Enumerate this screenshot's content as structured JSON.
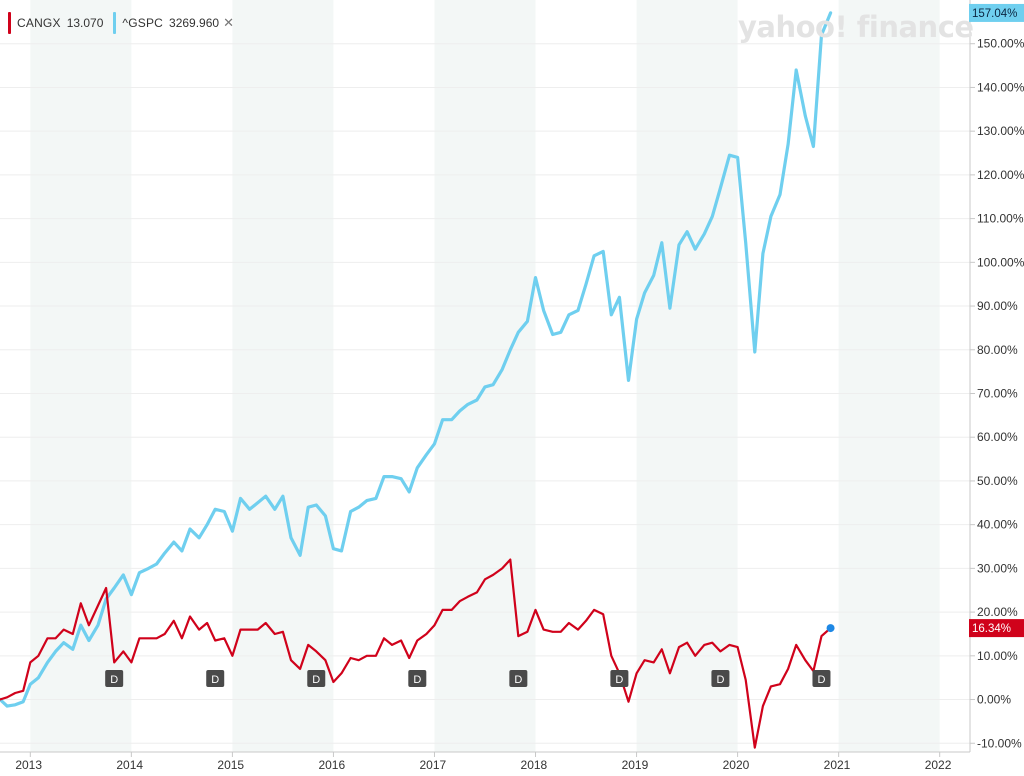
{
  "legend": {
    "series": [
      {
        "symbol": "CANGX",
        "value": "13.070",
        "color": "#d0021b"
      },
      {
        "symbol": "^GSPC",
        "value": "3269.960",
        "color": "#6fcfef"
      }
    ],
    "close_icon": "close-icon"
  },
  "watermark": "yahoo! finance",
  "end_labels": {
    "gspc": "157.04%",
    "cangx": "16.34%"
  },
  "dividend_marker": "D",
  "chart_data": {
    "type": "line",
    "title": "",
    "xlabel": "",
    "ylabel": "",
    "x_axis_labels": [
      "2013",
      "2014",
      "2015",
      "2016",
      "2017",
      "2018",
      "2019",
      "2020",
      "2021",
      "2022"
    ],
    "y_axis_labels": [
      "-10.00%",
      "0.00%",
      "10.00%",
      "20.00%",
      "30.00%",
      "40.00%",
      "50.00%",
      "60.00%",
      "70.00%",
      "80.00%",
      "90.00%",
      "100.00%",
      "110.00%",
      "120.00%",
      "130.00%",
      "140.00%",
      "150.00%"
    ],
    "y_range": [
      -12,
      160
    ],
    "x_range": [
      2012.7,
      2022.3
    ],
    "grid": true,
    "shaded_alternate_years": true,
    "legend_position": "top-left",
    "dividend_dates": [
      2013.83,
      2014.83,
      2015.83,
      2016.83,
      2017.83,
      2018.83,
      2019.83,
      2020.83
    ],
    "series": [
      {
        "name": "^GSPC",
        "color": "#6fcfef",
        "points": [
          [
            2012.7,
            0.0
          ],
          [
            2012.77,
            -1.5
          ],
          [
            2012.85,
            -1.2
          ],
          [
            2012.93,
            -0.5
          ],
          [
            2013.0,
            3.5
          ],
          [
            2013.08,
            5.0
          ],
          [
            2013.17,
            8.5
          ],
          [
            2013.25,
            11.0
          ],
          [
            2013.33,
            13.0
          ],
          [
            2013.42,
            11.5
          ],
          [
            2013.5,
            17.0
          ],
          [
            2013.58,
            13.5
          ],
          [
            2013.67,
            17.0
          ],
          [
            2013.75,
            23.0
          ],
          [
            2013.83,
            25.5
          ],
          [
            2013.92,
            28.5
          ],
          [
            2014.0,
            24.0
          ],
          [
            2014.08,
            29.0
          ],
          [
            2014.17,
            30.0
          ],
          [
            2014.25,
            31.0
          ],
          [
            2014.33,
            33.5
          ],
          [
            2014.42,
            36.0
          ],
          [
            2014.5,
            34.0
          ],
          [
            2014.58,
            39.0
          ],
          [
            2014.67,
            37.0
          ],
          [
            2014.75,
            40.0
          ],
          [
            2014.83,
            43.5
          ],
          [
            2014.92,
            43.0
          ],
          [
            2015.0,
            38.5
          ],
          [
            2015.08,
            46.0
          ],
          [
            2015.17,
            43.5
          ],
          [
            2015.25,
            45.0
          ],
          [
            2015.33,
            46.5
          ],
          [
            2015.42,
            43.5
          ],
          [
            2015.5,
            46.5
          ],
          [
            2015.58,
            37.0
          ],
          [
            2015.67,
            33.0
          ],
          [
            2015.75,
            44.0
          ],
          [
            2015.83,
            44.5
          ],
          [
            2015.92,
            42.0
          ],
          [
            2016.0,
            34.5
          ],
          [
            2016.08,
            34.0
          ],
          [
            2016.17,
            43.0
          ],
          [
            2016.25,
            44.0
          ],
          [
            2016.33,
            45.5
          ],
          [
            2016.42,
            46.0
          ],
          [
            2016.5,
            51.0
          ],
          [
            2016.58,
            51.0
          ],
          [
            2016.67,
            50.5
          ],
          [
            2016.75,
            47.5
          ],
          [
            2016.83,
            53.0
          ],
          [
            2016.92,
            56.0
          ],
          [
            2017.0,
            58.5
          ],
          [
            2017.08,
            64.0
          ],
          [
            2017.17,
            64.0
          ],
          [
            2017.25,
            66.0
          ],
          [
            2017.33,
            67.5
          ],
          [
            2017.42,
            68.5
          ],
          [
            2017.5,
            71.5
          ],
          [
            2017.58,
            72.0
          ],
          [
            2017.67,
            75.5
          ],
          [
            2017.75,
            80.0
          ],
          [
            2017.83,
            84.0
          ],
          [
            2017.92,
            86.5
          ],
          [
            2018.0,
            96.5
          ],
          [
            2018.08,
            89.0
          ],
          [
            2018.17,
            83.5
          ],
          [
            2018.25,
            84.0
          ],
          [
            2018.33,
            88.0
          ],
          [
            2018.42,
            89.0
          ],
          [
            2018.5,
            95.0
          ],
          [
            2018.58,
            101.5
          ],
          [
            2018.67,
            102.5
          ],
          [
            2018.75,
            88.0
          ],
          [
            2018.83,
            92.0
          ],
          [
            2018.92,
            73.0
          ],
          [
            2019.0,
            87.0
          ],
          [
            2019.08,
            93.0
          ],
          [
            2019.17,
            97.0
          ],
          [
            2019.25,
            104.5
          ],
          [
            2019.33,
            89.5
          ],
          [
            2019.42,
            104.0
          ],
          [
            2019.5,
            107.0
          ],
          [
            2019.58,
            103.0
          ],
          [
            2019.67,
            106.5
          ],
          [
            2019.75,
            110.5
          ],
          [
            2019.83,
            117.0
          ],
          [
            2019.92,
            124.5
          ],
          [
            2020.0,
            124.0
          ],
          [
            2020.08,
            104.5
          ],
          [
            2020.17,
            79.5
          ],
          [
            2020.25,
            102.0
          ],
          [
            2020.33,
            110.5
          ],
          [
            2020.42,
            115.5
          ],
          [
            2020.5,
            127.0
          ],
          [
            2020.58,
            144.0
          ],
          [
            2020.67,
            133.5
          ],
          [
            2020.75,
            126.5
          ],
          [
            2020.83,
            152.0
          ],
          [
            2020.92,
            157.04
          ]
        ]
      },
      {
        "name": "CANGX",
        "color": "#d0021b",
        "points": [
          [
            2012.7,
            0.0
          ],
          [
            2012.77,
            0.5
          ],
          [
            2012.85,
            1.5
          ],
          [
            2012.93,
            2.0
          ],
          [
            2013.0,
            8.5
          ],
          [
            2013.08,
            10.0
          ],
          [
            2013.17,
            14.0
          ],
          [
            2013.25,
            14.0
          ],
          [
            2013.33,
            16.0
          ],
          [
            2013.42,
            15.0
          ],
          [
            2013.5,
            22.0
          ],
          [
            2013.58,
            17.0
          ],
          [
            2013.67,
            21.5
          ],
          [
            2013.75,
            25.5
          ],
          [
            2013.83,
            8.5
          ],
          [
            2013.92,
            11.0
          ],
          [
            2014.0,
            8.5
          ],
          [
            2014.08,
            14.0
          ],
          [
            2014.17,
            14.0
          ],
          [
            2014.25,
            14.0
          ],
          [
            2014.33,
            15.0
          ],
          [
            2014.42,
            18.0
          ],
          [
            2014.5,
            14.0
          ],
          [
            2014.58,
            19.0
          ],
          [
            2014.67,
            16.0
          ],
          [
            2014.75,
            17.5
          ],
          [
            2014.83,
            13.5
          ],
          [
            2014.92,
            14.0
          ],
          [
            2015.0,
            10.0
          ],
          [
            2015.08,
            16.0
          ],
          [
            2015.17,
            16.0
          ],
          [
            2015.25,
            16.0
          ],
          [
            2015.33,
            17.5
          ],
          [
            2015.42,
            15.0
          ],
          [
            2015.5,
            15.5
          ],
          [
            2015.58,
            9.0
          ],
          [
            2015.67,
            7.0
          ],
          [
            2015.75,
            12.5
          ],
          [
            2015.83,
            11.0
          ],
          [
            2015.92,
            9.0
          ],
          [
            2016.0,
            4.0
          ],
          [
            2016.08,
            6.0
          ],
          [
            2016.17,
            9.5
          ],
          [
            2016.25,
            9.0
          ],
          [
            2016.33,
            10.0
          ],
          [
            2016.42,
            10.0
          ],
          [
            2016.5,
            14.0
          ],
          [
            2016.58,
            12.5
          ],
          [
            2016.67,
            13.5
          ],
          [
            2016.75,
            9.5
          ],
          [
            2016.83,
            13.5
          ],
          [
            2016.92,
            15.0
          ],
          [
            2017.0,
            17.0
          ],
          [
            2017.08,
            20.5
          ],
          [
            2017.17,
            20.5
          ],
          [
            2017.25,
            22.5
          ],
          [
            2017.33,
            23.5
          ],
          [
            2017.42,
            24.5
          ],
          [
            2017.5,
            27.5
          ],
          [
            2017.58,
            28.5
          ],
          [
            2017.67,
            30.0
          ],
          [
            2017.75,
            32.0
          ],
          [
            2017.83,
            14.5
          ],
          [
            2017.92,
            15.5
          ],
          [
            2018.0,
            20.5
          ],
          [
            2018.08,
            16.0
          ],
          [
            2018.17,
            15.5
          ],
          [
            2018.25,
            15.5
          ],
          [
            2018.33,
            17.5
          ],
          [
            2018.42,
            16.0
          ],
          [
            2018.5,
            18.0
          ],
          [
            2018.58,
            20.5
          ],
          [
            2018.67,
            19.5
          ],
          [
            2018.75,
            10.0
          ],
          [
            2018.83,
            6.0
          ],
          [
            2018.92,
            -0.5
          ],
          [
            2019.0,
            6.0
          ],
          [
            2019.08,
            9.0
          ],
          [
            2019.17,
            8.5
          ],
          [
            2019.25,
            11.5
          ],
          [
            2019.33,
            6.0
          ],
          [
            2019.42,
            12.0
          ],
          [
            2019.5,
            13.0
          ],
          [
            2019.58,
            10.0
          ],
          [
            2019.67,
            12.5
          ],
          [
            2019.75,
            13.0
          ],
          [
            2019.83,
            11.0
          ],
          [
            2019.92,
            12.5
          ],
          [
            2020.0,
            12.0
          ],
          [
            2020.08,
            4.5
          ],
          [
            2020.17,
            -11.0
          ],
          [
            2020.25,
            -1.5
          ],
          [
            2020.33,
            3.0
          ],
          [
            2020.42,
            3.5
          ],
          [
            2020.5,
            7.0
          ],
          [
            2020.58,
            12.5
          ],
          [
            2020.67,
            9.0
          ],
          [
            2020.75,
            6.5
          ],
          [
            2020.83,
            14.5
          ],
          [
            2020.92,
            16.34
          ]
        ]
      }
    ]
  }
}
